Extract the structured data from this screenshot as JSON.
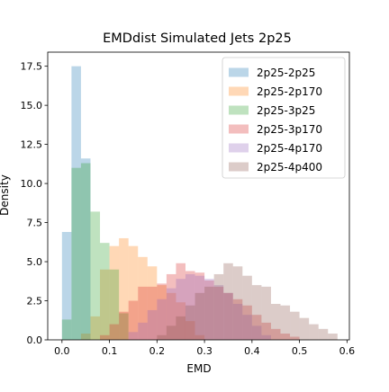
{
  "chart_data": {
    "type": "histogram",
    "title": "EMDdist Simulated Jets 2p25",
    "xlabel": "EMD",
    "ylabel": "Density",
    "xlim": [
      -0.03,
      0.605
    ],
    "ylim": [
      0,
      18.4
    ],
    "xticks": [
      0.0,
      0.1,
      0.2,
      0.3,
      0.4,
      0.5,
      0.6
    ],
    "xtick_labels": [
      "0.0",
      "0.1",
      "0.2",
      "0.3",
      "0.4",
      "0.5",
      "0.6"
    ],
    "yticks": [
      0.0,
      2.5,
      5.0,
      7.5,
      10.0,
      12.5,
      15.0,
      17.5
    ],
    "ytick_labels": [
      "0.0",
      "2.5",
      "5.0",
      "7.5",
      "10.0",
      "12.5",
      "15.0",
      "17.5"
    ],
    "legend_position": "top-right",
    "alpha": 0.3,
    "series": [
      {
        "name": "2p25-2p25",
        "color": "#1f77b4",
        "edges": [
          0.0,
          0.02,
          0.04,
          0.06
        ],
        "values": [
          6.9,
          17.5,
          11.6
        ]
      },
      {
        "name": "2p25-2p170",
        "color": "#ff7f0e",
        "edges": [
          0.04,
          0.06,
          0.08,
          0.1,
          0.12,
          0.14,
          0.16,
          0.18,
          0.2,
          0.22,
          0.24,
          0.26,
          0.28,
          0.3
        ],
        "values": [
          0.4,
          1.5,
          4.5,
          6.0,
          6.5,
          6.0,
          5.3,
          4.7,
          3.5,
          3.0,
          2.4,
          1.2,
          0.3
        ]
      },
      {
        "name": "2p25-3p25",
        "color": "#2ca02c",
        "edges": [
          0.0,
          0.02,
          0.04,
          0.06,
          0.08,
          0.1,
          0.12,
          0.14
        ],
        "values": [
          1.3,
          11.0,
          11.3,
          8.2,
          6.2,
          4.5,
          1.7
        ]
      },
      {
        "name": "2p25-3p170",
        "color": "#d62728",
        "edges": [
          0.08,
          0.1,
          0.12,
          0.14,
          0.16,
          0.18,
          0.2,
          0.22,
          0.24,
          0.26,
          0.28,
          0.3,
          0.32,
          0.34,
          0.36,
          0.38,
          0.4,
          0.42,
          0.44,
          0.46,
          0.48,
          0.5
        ],
        "values": [
          0.3,
          1.0,
          1.8,
          2.5,
          3.4,
          3.4,
          3.6,
          4.2,
          4.9,
          4.4,
          4.3,
          3.8,
          3.4,
          3.0,
          2.6,
          2.2,
          1.6,
          1.1,
          0.7,
          0.4,
          0.2
        ]
      },
      {
        "name": "2p25-4p170",
        "color": "#9467bd",
        "edges": [
          0.14,
          0.16,
          0.18,
          0.2,
          0.22,
          0.24,
          0.26,
          0.28,
          0.3,
          0.32,
          0.34,
          0.36,
          0.38,
          0.4,
          0.42,
          0.44
        ],
        "values": [
          0.5,
          1.1,
          1.9,
          2.6,
          3.3,
          3.9,
          4.2,
          4.1,
          3.9,
          3.5,
          3.0,
          2.3,
          1.6,
          0.9,
          0.3
        ]
      },
      {
        "name": "2p25-4p400",
        "color": "#8c564b",
        "edges": [
          0.2,
          0.22,
          0.24,
          0.26,
          0.28,
          0.3,
          0.32,
          0.34,
          0.36,
          0.38,
          0.4,
          0.42,
          0.44,
          0.46,
          0.48,
          0.5,
          0.52,
          0.54,
          0.56,
          0.58
        ],
        "values": [
          0.3,
          0.9,
          1.5,
          2.2,
          3.0,
          3.4,
          4.2,
          4.9,
          4.7,
          4.1,
          3.5,
          3.4,
          2.3,
          2.2,
          1.8,
          1.4,
          1.0,
          0.7,
          0.4
        ]
      }
    ]
  }
}
